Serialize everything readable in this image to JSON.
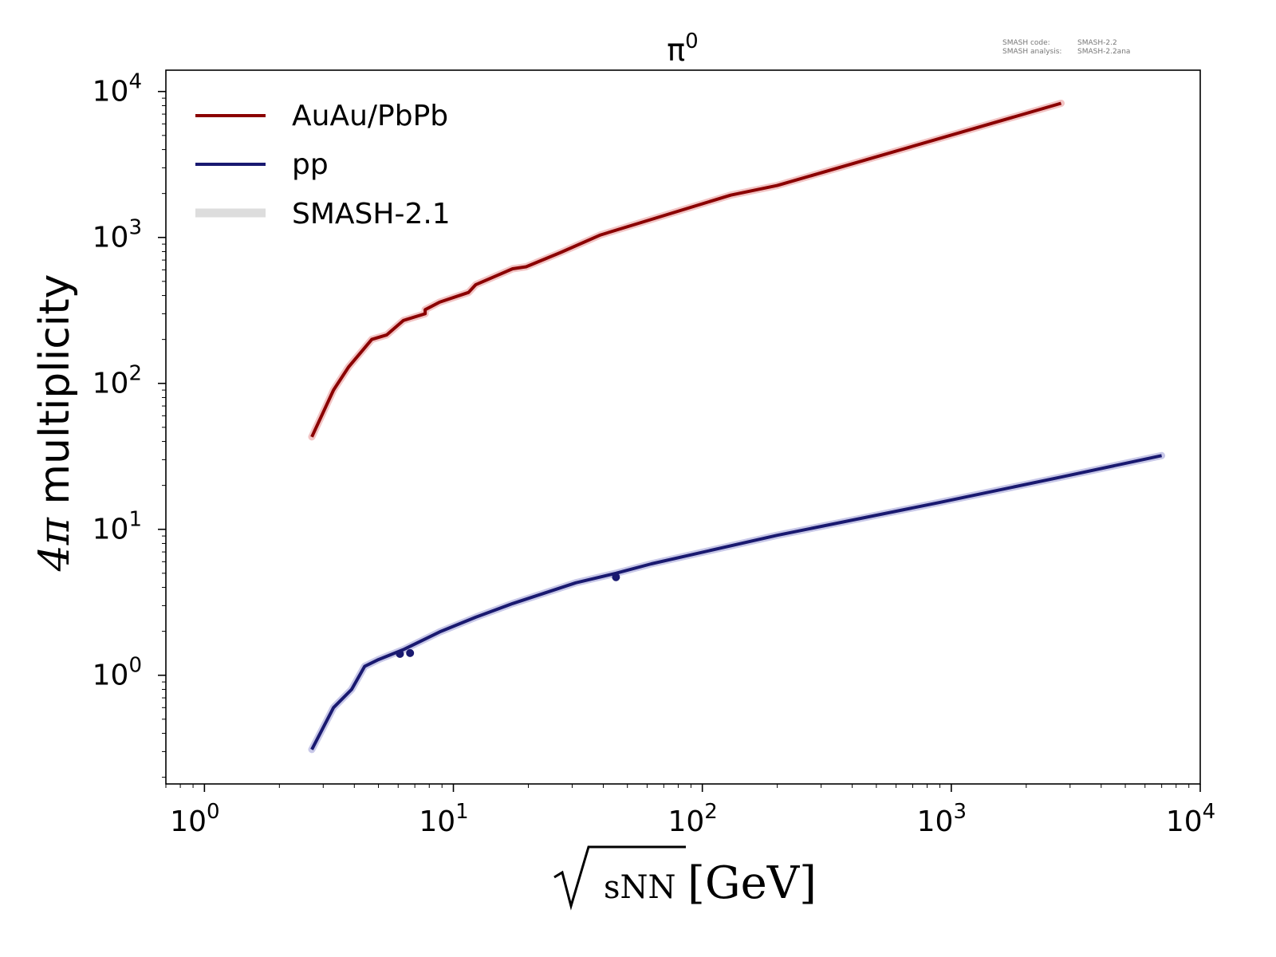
{
  "chart_data": {
    "type": "line",
    "title": "π⁰",
    "title_base": "π",
    "title_sup": "0",
    "xlabel": "√sNN [GeV]",
    "xlabel_sub": "sNN",
    "xlabel_unit": "[GeV]",
    "ylabel": "4π multiplicity",
    "ylabel_pi": "4π",
    "ylabel_rest": " multiplicity",
    "x_scale": "log",
    "y_scale": "log",
    "xlim": [
      0.7,
      10000
    ],
    "ylim": [
      0.18,
      14000
    ],
    "x_ticks": [
      {
        "base": "10",
        "exp": "0",
        "value": 1
      },
      {
        "base": "10",
        "exp": "1",
        "value": 10
      },
      {
        "base": "10",
        "exp": "2",
        "value": 100
      },
      {
        "base": "10",
        "exp": "3",
        "value": 1000
      },
      {
        "base": "10",
        "exp": "4",
        "value": 10000
      }
    ],
    "y_ticks": [
      {
        "base": "10",
        "exp": "0",
        "value": 1
      },
      {
        "base": "10",
        "exp": "1",
        "value": 10
      },
      {
        "base": "10",
        "exp": "2",
        "value": 100
      },
      {
        "base": "10",
        "exp": "3",
        "value": 1000
      },
      {
        "base": "10",
        "exp": "4",
        "value": 10000
      }
    ],
    "grid": false,
    "legend_position": "top-left",
    "legend": [
      {
        "label": "AuAu/PbPb",
        "color": "#8b0000",
        "style": "line"
      },
      {
        "label": "pp",
        "color": "#191970",
        "style": "line"
      },
      {
        "label": "SMASH-2.1",
        "color": "#dddddd",
        "style": "band"
      }
    ],
    "annotation": {
      "line1_key": "SMASH code:",
      "line1_val": "SMASH-2.2",
      "line2_key": "SMASH analysis:",
      "line2_val": "SMASH-2.2ana"
    },
    "series": [
      {
        "name": "AuAu/PbPb",
        "color": "#8b0000",
        "band_color": "#f2c4c4",
        "x": [
          2.7,
          3.3,
          3.8,
          4.7,
          5.4,
          6.3,
          7.7,
          7.7,
          8.8,
          11.5,
          12.3,
          17.3,
          19.6,
          27,
          39,
          62.4,
          130,
          200,
          2760
        ],
        "y": [
          43,
          90,
          130,
          200,
          215,
          270,
          300,
          320,
          360,
          420,
          475,
          610,
          630,
          790,
          1040,
          1330,
          1950,
          2270,
          8300
        ]
      },
      {
        "name": "pp",
        "color": "#191970",
        "band_color": "#c8c8e8",
        "x": [
          2.7,
          3.3,
          3.9,
          4.4,
          5.0,
          6.3,
          8.8,
          12.3,
          17.3,
          31,
          45,
          62.4,
          200,
          900,
          2760,
          7000
        ],
        "y": [
          0.31,
          0.6,
          0.8,
          1.15,
          1.28,
          1.5,
          1.98,
          2.5,
          3.1,
          4.3,
          5.0,
          5.8,
          9.1,
          15.3,
          22.8,
          32
        ]
      }
    ],
    "points": [
      {
        "series": "pp",
        "x": 6.1,
        "y": 1.4
      },
      {
        "series": "pp",
        "x": 6.7,
        "y": 1.42
      },
      {
        "series": "pp",
        "x": 45,
        "y": 4.7
      }
    ]
  }
}
